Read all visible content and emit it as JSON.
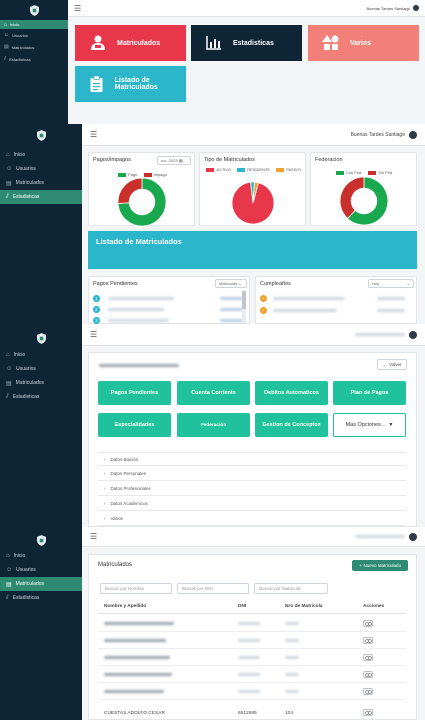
{
  "nav": [
    "Inicio",
    "Usuarios",
    "Matriculados",
    "Estadisticas"
  ],
  "greeting": "Buenas Tardes Santiago",
  "panel1": {
    "tiles": [
      "Matriculados",
      "Estadisticas",
      "Varios",
      "Listado de Matriculados"
    ]
  },
  "panel2": {
    "pagos_title": "Pagos/impagos",
    "month": "oct.-2023",
    "pagos_legend": [
      "Pago",
      "Impago"
    ],
    "pagos_values": [
      74,
      26
    ],
    "tipo_title": "Tipo de Matriculados",
    "tipo_legend": [
      "ACTIVO",
      "RESIDENTE",
      "PASIVO"
    ],
    "tipo_values": [
      94,
      3,
      3
    ],
    "fed_title": "Federacion",
    "fed_legend": [
      "Con Fed.",
      "Sin Fed."
    ],
    "fed_values": [
      62,
      38
    ],
    "banner": "Listado de Matriculados",
    "pendientes_title": "Pagos Pendientes",
    "pendientes_select": "Matriculas",
    "bullets": [
      "1",
      "2",
      "3"
    ],
    "cumple_title": "Cumpleaños",
    "cumple_select": "Hoy"
  },
  "panel3": {
    "back": "Volver",
    "buttons": [
      "Pagos Pendientes",
      "Cuenta Corriente",
      "Debitos Automaticos",
      "Plan de Pagos",
      "Especialidades",
      "Federación",
      "Gestion de Conceptos",
      "Mas Opciones..."
    ],
    "accordion": [
      "Datos Baición",
      "Datos Personales",
      "Datos Profesionales",
      "Datos Academicos",
      "Varios"
    ]
  },
  "panel4": {
    "title": "Matriculados",
    "new_button": "Nuevo Matriculado",
    "search_name": "Buscar por Nombre",
    "search_dni": "Buscar por DNI",
    "search_mat": "Buscar por Matricula",
    "headers": [
      "Nombre y Apellido",
      "DNI",
      "Nro de Matricula",
      "Acciones"
    ],
    "last_row": {
      "name": "CUESTAS ADOLFO CESAR",
      "dni": "6512985",
      "mat": "104"
    }
  },
  "colors": {
    "sidebar": "#0e2536",
    "active": "#2f8a73",
    "red": "#e8374b",
    "navy": "#0e2536",
    "salmon": "#f28079",
    "teal": "#2bb6cc",
    "green": "#1fc29c",
    "chart_green": "#1aa84f",
    "chart_red": "#c9302c"
  }
}
